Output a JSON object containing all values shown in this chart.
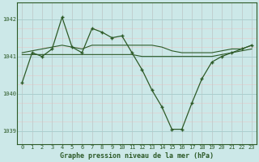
{
  "title": "Graphe pression niveau de la mer (hPa)",
  "bg_color": "#cce8e8",
  "line_color": "#2d5a27",
  "major_grid_color": "#aacece",
  "minor_grid_color": "#e8c8c8",
  "xlim": [
    -0.5,
    23.5
  ],
  "ylim": [
    1038.65,
    1042.45
  ],
  "yticks": [
    1039,
    1040,
    1041,
    1042
  ],
  "xticks": [
    0,
    1,
    2,
    3,
    4,
    5,
    6,
    7,
    8,
    9,
    10,
    11,
    12,
    13,
    14,
    15,
    16,
    17,
    18,
    19,
    20,
    21,
    22,
    23
  ],
  "series1_x": [
    0,
    1,
    2,
    3,
    4,
    5,
    6,
    7,
    8,
    9,
    10,
    11,
    12,
    13,
    14,
    15,
    16,
    17,
    18,
    19,
    20,
    21,
    22,
    23
  ],
  "series1_y": [
    1040.3,
    1041.1,
    1041.0,
    1041.2,
    1042.05,
    1041.25,
    1041.1,
    1041.75,
    1041.65,
    1041.5,
    1041.55,
    1041.1,
    1040.65,
    1040.1,
    1039.65,
    1039.05,
    1039.05,
    1039.75,
    1040.4,
    1040.85,
    1041.0,
    1041.1,
    1041.2,
    1041.3
  ],
  "series2_x": [
    0,
    1,
    2,
    3,
    4,
    5,
    6,
    7,
    8,
    9,
    10,
    11,
    12,
    13,
    14,
    15,
    16,
    17,
    18,
    19,
    20,
    21,
    22,
    23
  ],
  "series2_y": [
    1041.05,
    1041.05,
    1041.05,
    1041.05,
    1041.05,
    1041.05,
    1041.05,
    1041.05,
    1041.05,
    1041.05,
    1041.05,
    1041.05,
    1041.0,
    1041.0,
    1041.0,
    1041.0,
    1041.0,
    1041.0,
    1041.0,
    1041.0,
    1041.05,
    1041.1,
    1041.15,
    1041.2
  ],
  "series3_x": [
    0,
    1,
    2,
    3,
    4,
    5,
    6,
    7,
    8,
    9,
    10,
    11,
    12,
    13,
    14,
    15,
    16,
    17,
    18,
    19,
    20,
    21,
    22,
    23
  ],
  "series3_y": [
    1041.1,
    1041.15,
    1041.2,
    1041.25,
    1041.3,
    1041.25,
    1041.2,
    1041.3,
    1041.3,
    1041.3,
    1041.3,
    1041.3,
    1041.3,
    1041.3,
    1041.25,
    1041.15,
    1041.1,
    1041.1,
    1041.1,
    1041.1,
    1041.15,
    1041.2,
    1041.2,
    1041.3
  ],
  "title_fontsize": 6,
  "tick_fontsize": 5
}
